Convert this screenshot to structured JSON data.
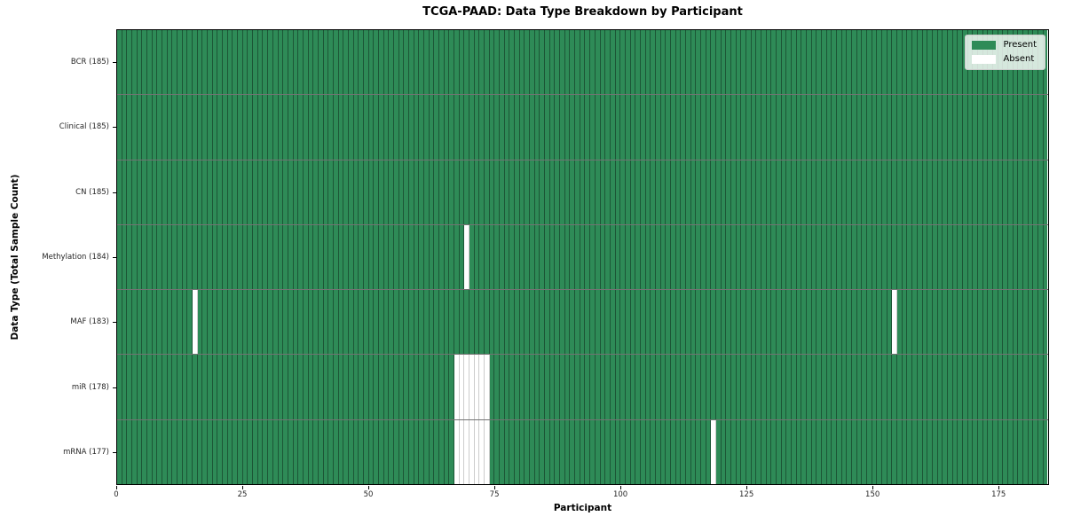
{
  "chart_data": {
    "type": "heatmap",
    "title": "TCGA-PAAD: Data Type Breakdown by Participant",
    "xlabel": "Participant",
    "ylabel": "Data Type (Total Sample Count)",
    "n_participants": 185,
    "x_ticks": [
      0,
      25,
      50,
      75,
      100,
      125,
      150,
      175
    ],
    "xlim": [
      0,
      185
    ],
    "grid": "per-cell borders, dark row separators",
    "legend_position": "upper-right",
    "colors": {
      "present": "#2e8b57",
      "absent": "#ffffff"
    },
    "legend": [
      {
        "label": "Present",
        "value": "present"
      },
      {
        "label": "Absent",
        "value": "absent"
      }
    ],
    "rows": [
      {
        "label": "BCR (185)",
        "data_type": "BCR",
        "total_samples": 185,
        "absent_participants": []
      },
      {
        "label": "Clinical (185)",
        "data_type": "Clinical",
        "total_samples": 185,
        "absent_participants": []
      },
      {
        "label": "CN (185)",
        "data_type": "CN",
        "total_samples": 185,
        "absent_participants": []
      },
      {
        "label": "Methylation (184)",
        "data_type": "Methylation",
        "total_samples": 184,
        "absent_participants": [
          69
        ]
      },
      {
        "label": "MAF (183)",
        "data_type": "MAF",
        "total_samples": 183,
        "absent_participants": [
          15,
          154
        ]
      },
      {
        "label": "miR (178)",
        "data_type": "miR",
        "total_samples": 178,
        "absent_participants": [
          67,
          68,
          69,
          70,
          71,
          72,
          73
        ]
      },
      {
        "label": "mRNA (177)",
        "data_type": "mRNA",
        "total_samples": 177,
        "absent_participants": [
          67,
          68,
          69,
          70,
          71,
          72,
          73,
          118
        ]
      }
    ]
  }
}
